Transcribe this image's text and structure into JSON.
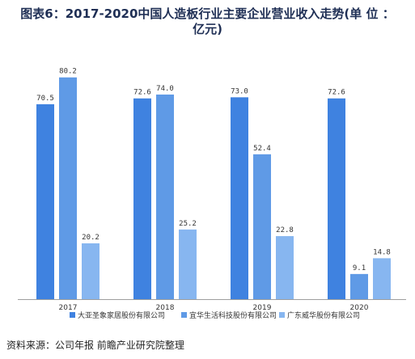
{
  "title": {
    "line1": "图表6：2017-2020中国人造板行业主要企业营业收入走势(单 位 ：",
    "line2": "亿元)"
  },
  "source": "资料来源：公司年报 前瞻产业研究院整理",
  "colors": {
    "series": [
      "#3f82e0",
      "#5f9ae6",
      "#87b6f0"
    ],
    "axis": "#9e9e9e",
    "label": "#333333"
  },
  "chart_data": {
    "type": "bar",
    "categories": [
      "2017",
      "2018",
      "2019",
      "2020"
    ],
    "series": [
      {
        "name": "大亚圣象家居股份有限公司",
        "values": [
          70.5,
          72.6,
          73.0,
          72.6
        ]
      },
      {
        "name": "宜华生活科技股份有限公司",
        "values": [
          80.2,
          74.0,
          52.4,
          9.1
        ]
      },
      {
        "name": "广东威华股份有限公司",
        "values": [
          20.2,
          25.2,
          22.8,
          14.8
        ]
      }
    ],
    "data_labels": [
      [
        "70.5",
        "80.2",
        "20.2"
      ],
      [
        "72.6",
        "74.0",
        "25.2"
      ],
      [
        "73.0",
        "52.4",
        "22.8"
      ],
      [
        "72.6",
        "9.1",
        "14.8"
      ]
    ],
    "ylim": [
      0,
      90
    ],
    "grid": false,
    "legend_position": "bottom"
  }
}
